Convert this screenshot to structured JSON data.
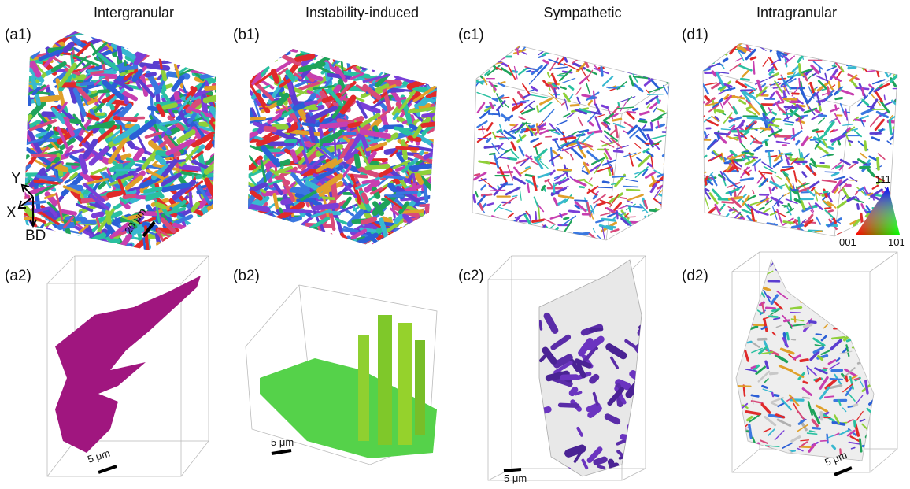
{
  "columns": [
    {
      "title": "Intergranular",
      "top_label": "(a1)",
      "bottom_label": "(a2)"
    },
    {
      "title": "Instability-induced",
      "top_label": "(b1)",
      "bottom_label": "(b2)"
    },
    {
      "title": "Sympathetic",
      "top_label": "(c1)",
      "bottom_label": "(c2)"
    },
    {
      "title": "Intragranular",
      "top_label": "(d1)",
      "bottom_label": "(d2)"
    }
  ],
  "scale_bars": {
    "a1": "20 μm",
    "a2": "5 μm",
    "b2": "5 μm",
    "c2": "5 μm",
    "d2": "5 μm"
  },
  "axes": {
    "y": "Y",
    "x": "X",
    "bd": "BD"
  },
  "color_key": {
    "top": "111",
    "left": "001",
    "right": "101"
  }
}
